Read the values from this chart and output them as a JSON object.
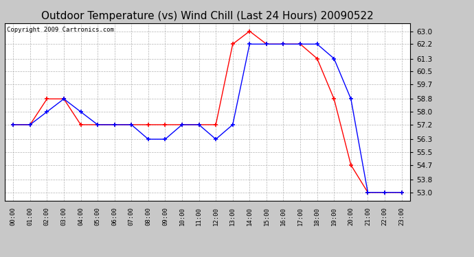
{
  "title": "Outdoor Temperature (vs) Wind Chill (Last 24 Hours) 20090522",
  "copyright": "Copyright 2009 Cartronics.com",
  "x_labels": [
    "00:00",
    "01:00",
    "02:00",
    "03:00",
    "04:00",
    "05:00",
    "06:00",
    "07:00",
    "08:00",
    "09:00",
    "10:00",
    "11:00",
    "12:00",
    "13:00",
    "14:00",
    "15:00",
    "16:00",
    "17:00",
    "18:00",
    "19:00",
    "20:00",
    "21:00",
    "22:00",
    "23:00"
  ],
  "temp_red": [
    57.2,
    57.2,
    58.8,
    58.8,
    57.2,
    57.2,
    57.2,
    57.2,
    57.2,
    57.2,
    57.2,
    57.2,
    57.2,
    62.2,
    63.0,
    62.2,
    62.2,
    62.2,
    61.3,
    58.8,
    54.7,
    53.0,
    53.0,
    53.0
  ],
  "temp_blue": [
    57.2,
    57.2,
    58.0,
    58.8,
    58.0,
    57.2,
    57.2,
    57.2,
    56.3,
    56.3,
    57.2,
    57.2,
    56.3,
    57.2,
    62.2,
    62.2,
    62.2,
    62.2,
    62.2,
    61.3,
    58.8,
    53.0,
    53.0,
    53.0
  ],
  "ylim": [
    52.5,
    63.5
  ],
  "yticks": [
    53.0,
    53.8,
    54.7,
    55.5,
    56.3,
    57.2,
    58.0,
    58.8,
    59.7,
    60.5,
    61.3,
    62.2,
    63.0
  ],
  "red_color": "#ff0000",
  "blue_color": "#0000ff",
  "figure_bg": "#c8c8c8",
  "plot_bg": "#ffffff",
  "grid_color": "#aaaaaa",
  "title_fontsize": 11,
  "copyright_fontsize": 6.5
}
